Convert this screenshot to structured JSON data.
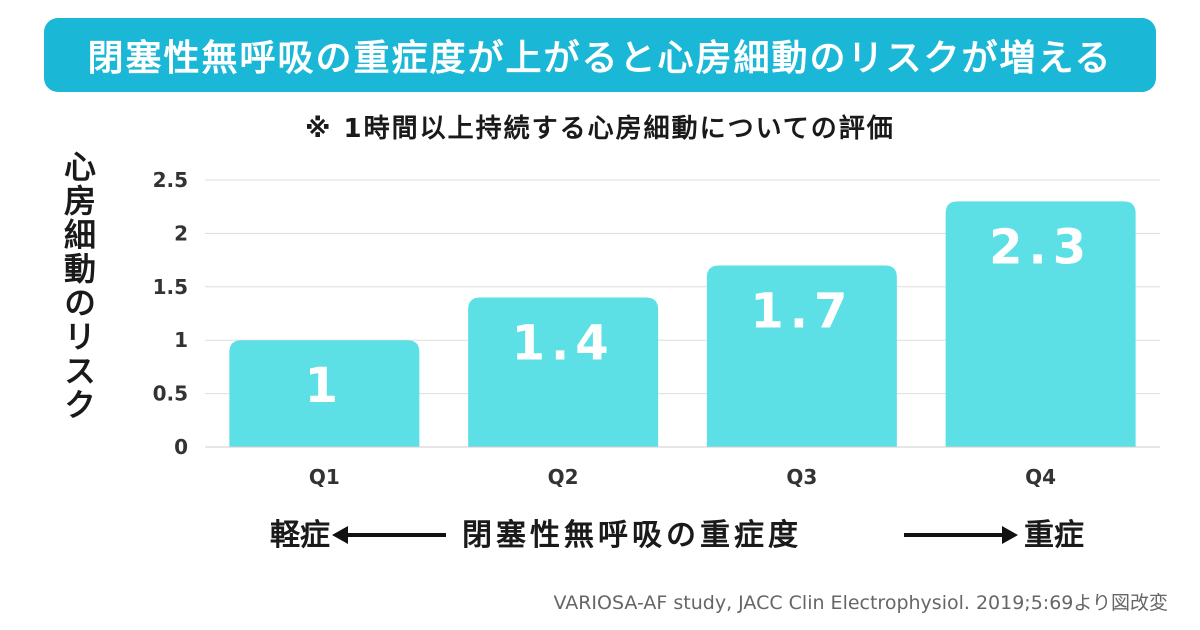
{
  "colors": {
    "banner": "#1ab7d6",
    "bar": "#5ce0e6",
    "bar_label": "#ffffff",
    "grid": "#dddddd",
    "tick": "#333333"
  },
  "banner_title": "閉塞性無呼吸の重症度が上がると心房細動のリスクが増える",
  "subtitle": "※ 1時間以上持続する心房細動についての評価",
  "axis_caption": {
    "left": "軽症",
    "center": "閉塞性無呼吸の重症度",
    "right": "重症"
  },
  "source": "VARIOSA-AF study, JACC Clin Electrophysiol. 2019;5:69より図改変",
  "chart_data": {
    "type": "bar",
    "title": "",
    "ylabel": "心房細動のリスク",
    "xlabel": "",
    "categories": [
      "Q1",
      "Q2",
      "Q3",
      "Q4"
    ],
    "values": [
      1,
      1.4,
      1.7,
      2.3
    ],
    "value_labels": [
      "1",
      "1.4",
      "1.7",
      "2.3"
    ],
    "ylim": [
      0,
      2.5
    ],
    "yticks": [
      0,
      0.5,
      1,
      1.5,
      2,
      2.5
    ],
    "ytick_labels": [
      "0",
      "0.5",
      "1",
      "1.5",
      "2",
      "2.5"
    ],
    "grid": true,
    "legend": "none"
  }
}
